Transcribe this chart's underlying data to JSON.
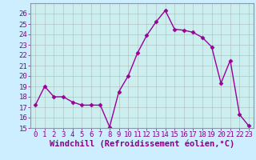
{
  "x": [
    0,
    1,
    2,
    3,
    4,
    5,
    6,
    7,
    8,
    9,
    10,
    11,
    12,
    13,
    14,
    15,
    16,
    17,
    18,
    19,
    20,
    21,
    22,
    23
  ],
  "y": [
    17.2,
    19.0,
    18.0,
    18.0,
    17.5,
    17.2,
    17.2,
    17.2,
    15.1,
    18.5,
    20.0,
    22.2,
    23.9,
    25.2,
    26.3,
    24.5,
    24.4,
    24.2,
    23.7,
    22.8,
    19.3,
    21.5,
    16.3,
    15.2
  ],
  "ylim": [
    15,
    27
  ],
  "yticks": [
    15,
    16,
    17,
    18,
    19,
    20,
    21,
    22,
    23,
    24,
    25,
    26
  ],
  "xticks": [
    0,
    1,
    2,
    3,
    4,
    5,
    6,
    7,
    8,
    9,
    10,
    11,
    12,
    13,
    14,
    15,
    16,
    17,
    18,
    19,
    20,
    21,
    22,
    23
  ],
  "line_color": "#990099",
  "marker": "D",
  "marker_size": 2.5,
  "bg_color": "#cceeff",
  "plot_bg_color": "#cceeee",
  "grid_color": "#aabbbb",
  "border_color": "#8899aa",
  "xlabel": "Windchill (Refroidissement éolien,°C)",
  "xlabel_fontsize": 7.5,
  "tick_fontsize": 6.5,
  "tick_color": "#880088"
}
